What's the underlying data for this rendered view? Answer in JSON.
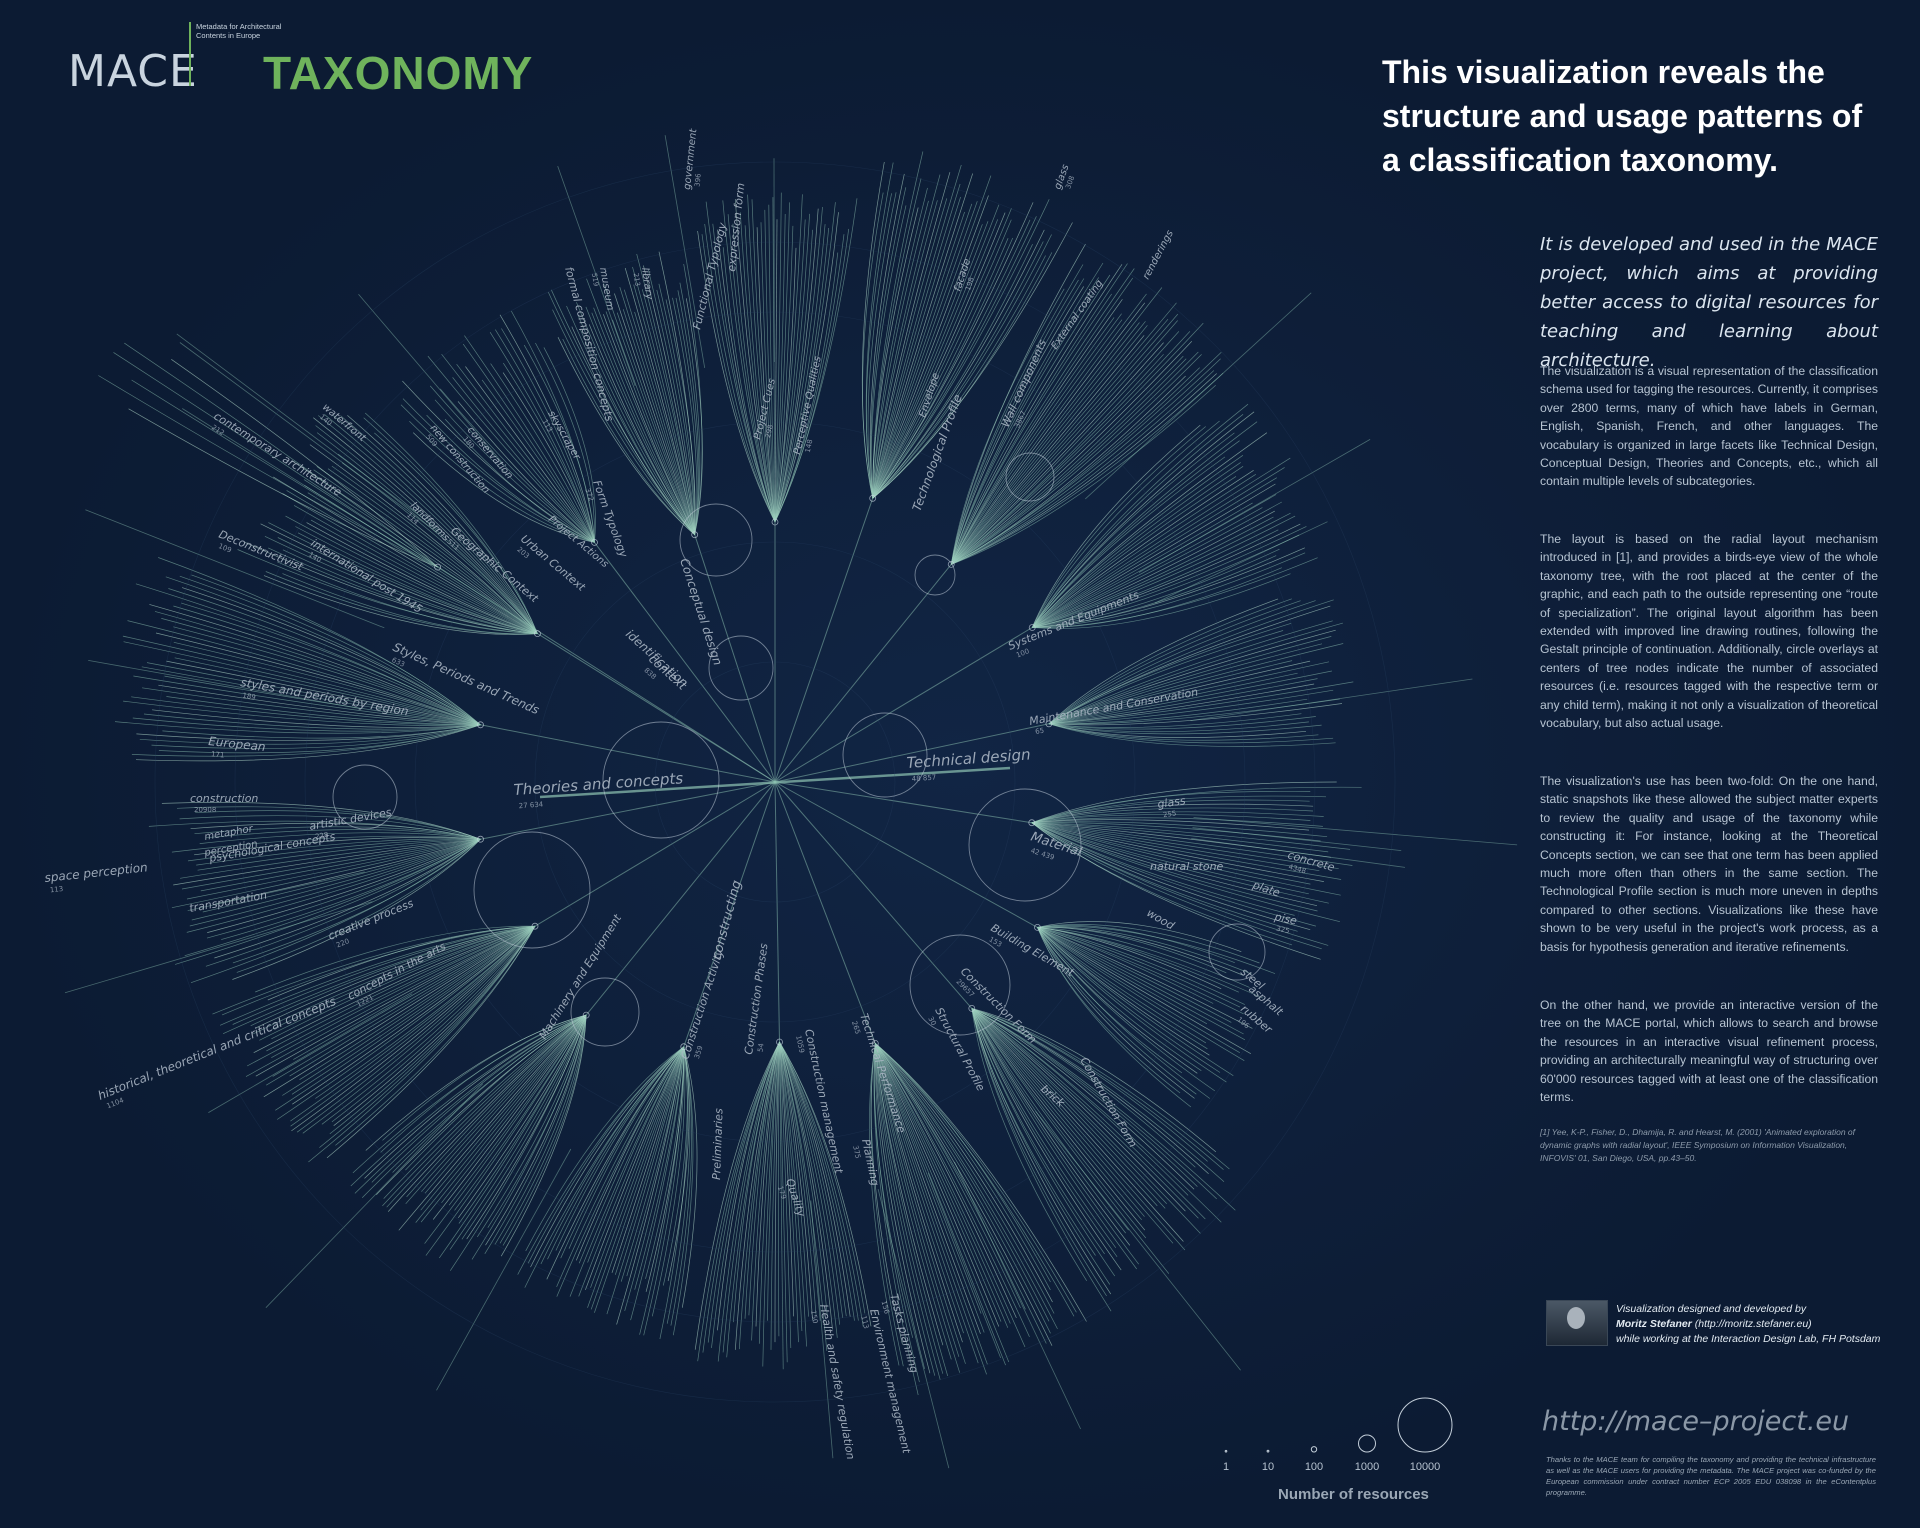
{
  "header": {
    "logo": "MACE",
    "logo_subtitle": "Metadata for Architectural Contents in Europe",
    "title": "TAXONOMY"
  },
  "headline": "This visualization reveals the structure and usage patterns of a classification taxonomy.",
  "lead": "It is developed and used in the MACE project, which aims at providing better access to digital resources for teaching and learning about architecture.",
  "paragraphs": [
    "The visualization is a visual representation of the classification schema used for tagging the resources. Currently, it comprises over 2800 terms, many of which have labels in German, English, Spanish, French, and other languages. The vocabulary is organized in large facets like Technical Design, Conceptual Design, Theories and Concepts, etc., which all contain multiple levels of subcategories.",
    "The layout is based on the radial layout mechanism introduced in [1], and provides a birds-eye view of the whole taxonomy tree, with the root placed at the center of the graphic, and each path to the outside representing one “route of specialization”. The original layout algorithm has been extended with improved line drawing routines, following the Gestalt principle of continuation. Additionally, circle overlays at centers of tree nodes indicate the number of associated resources (i.e. resources tagged with the respective term or any child term), making it not only a visualization of theoretical vocabulary, but also actual usage.",
    "The visualization's use has been two-fold: On the one hand, static snapshots like these allowed the subject matter experts to review the quality and usage of the taxonomy while constructing it: For instance, looking at the Theoretical Concepts section, we can see that one term has been applied much more often than others in the same section. The Technological Profile section is much more uneven in depths compared to other sections. Visualizations like these have shown to be very useful in the project's work process, as a basis for hypothesis generation and iterative refinements.",
    "On the other hand, we provide an interactive version of the tree on the MACE portal, which allows to search and browse the resources in an interactive visual refinement process, providing an architecturally meaningful way of structuring over 60'000 resources tagged with at least one of the classification terms."
  ],
  "reference": "[1] Yee, K-P., Fisher, D., Dhamija, R. and Hearst, M. (2001) 'Animated exploration of dynamic graphs with radial layout', IEEE Symposium on Information Visualization, INFOVIS' 01, San Diego, USA, pp.43–50.",
  "credit": {
    "line1": "Visualization designed and developed by",
    "name": "Moritz Stefaner",
    "site": "(http://moritz.stefaner.eu)",
    "line3": "while working at the Interaction Design Lab, FH Potsdam"
  },
  "url": "http://mace–project.eu",
  "thanks": "Thanks to the MACE team for compiling the taxonomy and providing the technical infrastructure as well as the MACE users for providing the metadata. The MACE project was co-funded by the European commission under contract number ECP 2005 EDU 038098 in the eContentplus programme.",
  "legend": {
    "title": "Number of resources",
    "items": [
      {
        "label": "1",
        "value": 1
      },
      {
        "label": "10",
        "value": 10
      },
      {
        "label": "100",
        "value": 100
      },
      {
        "label": "1000",
        "value": 1000
      },
      {
        "label": "10000",
        "value": 10000
      }
    ]
  },
  "colors": {
    "background": "#0c1b33",
    "branch": "#8fc5b4",
    "branch_bright": "#c8f2df",
    "label": "#aab6c4",
    "accent_green": "#6fb35c"
  },
  "nodes": [
    {
      "label": "Theories and concepts",
      "count": "27 634"
    },
    {
      "label": "Technical design",
      "count": "48 857"
    },
    {
      "label": "Material",
      "count": "42 439"
    },
    {
      "label": "constructing",
      "count": ""
    },
    {
      "label": "Conceptual design",
      "count": ""
    },
    {
      "label": "Technological Profile",
      "count": ""
    },
    {
      "label": "Styles, Periods and Trends",
      "count": "633"
    },
    {
      "label": "identification",
      "count": ""
    },
    {
      "label": "context",
      "count": "838"
    },
    {
      "label": "Systems and Equipments",
      "count": "100"
    },
    {
      "label": "Maintenance and Conservation",
      "count": "65"
    },
    {
      "label": "Building Element",
      "count": "153"
    },
    {
      "label": "Construction Form",
      "count": "29657"
    },
    {
      "label": "Structural Profile",
      "count": "30"
    },
    {
      "label": "Technical Performance",
      "count": "265"
    },
    {
      "label": "Construction management",
      "count": "1059"
    },
    {
      "label": "Construction Phases",
      "count": "54"
    },
    {
      "label": "Construction Activity",
      "count": "359"
    },
    {
      "label": "Machinery and Equipment",
      "count": ""
    },
    {
      "label": "Preliminaries",
      "count": ""
    },
    {
      "label": "Quality",
      "count": "179"
    },
    {
      "label": "Planning",
      "count": "375"
    },
    {
      "label": "Tasks planning",
      "count": "156"
    },
    {
      "label": "Environment management",
      "count": "113"
    },
    {
      "label": "Health and safety regulation",
      "count": "150"
    },
    {
      "label": "concepts in the arts",
      "count": "1221"
    },
    {
      "label": "historical, theoretical and critical concepts",
      "count": "1104"
    },
    {
      "label": "creative process",
      "count": "220"
    },
    {
      "label": "transportation",
      "count": ""
    },
    {
      "label": "psychological concepts",
      "count": ""
    },
    {
      "label": "artistic devices",
      "count": "228"
    },
    {
      "label": "perception",
      "count": ""
    },
    {
      "label": "metaphor",
      "count": ""
    },
    {
      "label": "space perception",
      "count": "113"
    },
    {
      "label": "construction",
      "count": "20908"
    },
    {
      "label": "European",
      "count": "171"
    },
    {
      "label": "styles and periods by region",
      "count": "189"
    },
    {
      "label": "Deconstructivist",
      "count": "109"
    },
    {
      "label": "international post 1945",
      "count": "140"
    },
    {
      "label": "contemporary architecture",
      "count": "212"
    },
    {
      "label": "waterfront",
      "count": "140"
    },
    {
      "label": "landforms",
      "count": "114"
    },
    {
      "label": "Geographic Context",
      "count": "511"
    },
    {
      "label": "Urban Context",
      "count": "203"
    },
    {
      "label": "Project Actions",
      "count": ""
    },
    {
      "label": "new construction",
      "count": "509"
    },
    {
      "label": "conservation",
      "count": "180"
    },
    {
      "label": "skyscraper",
      "count": "113"
    },
    {
      "label": "Form Typology",
      "count": "372"
    },
    {
      "label": "formal composition concepts",
      "count": ""
    },
    {
      "label": "museum",
      "count": "519"
    },
    {
      "label": "library",
      "count": "213"
    },
    {
      "label": "government",
      "count": "396"
    },
    {
      "label": "expression form",
      "count": ""
    },
    {
      "label": "Functional Typology",
      "count": ""
    },
    {
      "label": "Project Cues",
      "count": "298"
    },
    {
      "label": "Perceptive Qualities",
      "count": "148"
    },
    {
      "label": "Envelope",
      "count": ""
    },
    {
      "label": "Wall components",
      "count": "3867"
    },
    {
      "label": "External coating",
      "count": ""
    },
    {
      "label": "renderings",
      "count": ""
    },
    {
      "label": "facade",
      "count": "198"
    },
    {
      "label": "glass",
      "count": "308"
    },
    {
      "label": "glass",
      "count": "255"
    },
    {
      "label": "natural stone",
      "count": ""
    },
    {
      "label": "concrete",
      "count": "4348"
    },
    {
      "label": "plate",
      "count": ""
    },
    {
      "label": "pise",
      "count": "325"
    },
    {
      "label": "wood",
      "count": ""
    },
    {
      "label": "steel",
      "count": ""
    },
    {
      "label": "asphalt",
      "count": ""
    },
    {
      "label": "rubber",
      "count": "196"
    },
    {
      "label": "brick",
      "count": ""
    },
    {
      "label": "Construction Form",
      "count": ""
    }
  ]
}
